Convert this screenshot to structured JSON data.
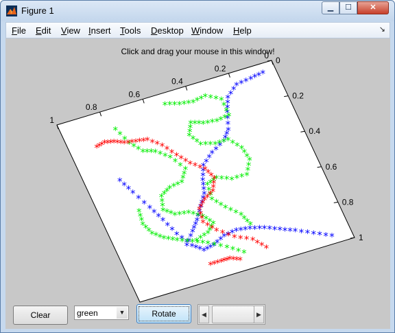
{
  "window": {
    "title": "Figure 1",
    "controls": {
      "minimize": "▁",
      "maximize": "☐",
      "close": "✕"
    }
  },
  "menu": {
    "items": [
      "File",
      "Edit",
      "View",
      "Insert",
      "Tools",
      "Desktop",
      "Window",
      "Help"
    ],
    "dock_arrow": "↘"
  },
  "figure": {
    "instruction": "Click and drag your mouse in this window!"
  },
  "controls": {
    "clear_label": "Clear",
    "color_select": {
      "selected": "green",
      "arrow": "▼"
    },
    "rotate_label": "Rotate",
    "slider": {
      "left_arrow": "◀",
      "right_arrow": "▶"
    }
  },
  "chart_data": {
    "type": "scatter",
    "marker": "*",
    "axes": {
      "x_ticks": [
        "1",
        "0.8",
        "0.6",
        "0.4",
        "0.2",
        "0"
      ],
      "y_ticks": [
        "0",
        "0.2",
        "0.4",
        "0.6",
        "0.8",
        "1"
      ],
      "xlim": [
        0,
        1
      ],
      "ylim": [
        0,
        1
      ]
    },
    "series": [
      {
        "color": "#0000ff",
        "strokes": [
          [
            [
              0.94,
              0.05
            ],
            [
              0.88,
              0.06
            ],
            [
              0.81,
              0.07
            ],
            [
              0.75,
              0.12
            ],
            [
              0.72,
              0.19
            ],
            [
              0.69,
              0.28
            ],
            [
              0.65,
              0.33
            ],
            [
              0.58,
              0.37
            ],
            [
              0.52,
              0.42
            ],
            [
              0.49,
              0.49
            ],
            [
              0.47,
              0.56
            ],
            [
              0.43,
              0.62
            ],
            [
              0.39,
              0.68
            ],
            [
              0.35,
              0.73
            ],
            [
              0.3,
              0.79
            ]
          ],
          [
            [
              0.15,
              0.37
            ],
            [
              0.18,
              0.45
            ],
            [
              0.22,
              0.55
            ],
            [
              0.25,
              0.63
            ],
            [
              0.28,
              0.72
            ],
            [
              0.32,
              0.8
            ],
            [
              0.36,
              0.84
            ],
            [
              0.41,
              0.83
            ],
            [
              0.47,
              0.8
            ],
            [
              0.53,
              0.79
            ],
            [
              0.59,
              0.8
            ],
            [
              0.65,
              0.82
            ],
            [
              0.71,
              0.85
            ],
            [
              0.77,
              0.88
            ],
            [
              0.84,
              0.92
            ],
            [
              0.91,
              0.96
            ]
          ]
        ]
      },
      {
        "color": "#00ee00",
        "strokes": [
          [
            [
              0.48,
              0.06
            ],
            [
              0.54,
              0.08
            ],
            [
              0.6,
              0.09
            ],
            [
              0.66,
              0.08
            ],
            [
              0.72,
              0.12
            ],
            [
              0.72,
              0.21
            ],
            [
              0.66,
              0.22
            ],
            [
              0.6,
              0.21
            ],
            [
              0.55,
              0.19
            ],
            [
              0.52,
              0.25
            ],
            [
              0.55,
              0.31
            ],
            [
              0.61,
              0.33
            ],
            [
              0.67,
              0.33
            ],
            [
              0.71,
              0.39
            ],
            [
              0.72,
              0.46
            ],
            [
              0.68,
              0.53
            ],
            [
              0.61,
              0.53
            ],
            [
              0.55,
              0.5
            ],
            [
              0.5,
              0.52
            ],
            [
              0.49,
              0.6
            ],
            [
              0.53,
              0.66
            ],
            [
              0.58,
              0.72
            ],
            [
              0.6,
              0.78
            ]
          ],
          [
            [
              0.23,
              0.11
            ],
            [
              0.26,
              0.2
            ],
            [
              0.3,
              0.26
            ],
            [
              0.35,
              0.28
            ],
            [
              0.4,
              0.33
            ],
            [
              0.44,
              0.41
            ],
            [
              0.4,
              0.47
            ],
            [
              0.34,
              0.48
            ],
            [
              0.29,
              0.51
            ],
            [
              0.27,
              0.58
            ],
            [
              0.31,
              0.62
            ],
            [
              0.37,
              0.63
            ],
            [
              0.42,
              0.67
            ],
            [
              0.45,
              0.72
            ],
            [
              0.41,
              0.76
            ],
            [
              0.35,
              0.78
            ]
          ],
          [
            [
              0.17,
              0.55
            ],
            [
              0.16,
              0.62
            ],
            [
              0.18,
              0.68
            ],
            [
              0.22,
              0.72
            ],
            [
              0.27,
              0.75
            ],
            [
              0.33,
              0.78
            ],
            [
              0.39,
              0.81
            ],
            [
              0.46,
              0.86
            ],
            [
              0.52,
              0.91
            ]
          ]
        ]
      },
      {
        "color": "#ff0000",
        "strokes": [
          [
            [
              0.12,
              0.17
            ],
            [
              0.16,
              0.16
            ],
            [
              0.2,
              0.17
            ],
            [
              0.24,
              0.19
            ],
            [
              0.29,
              0.2
            ],
            [
              0.34,
              0.21
            ],
            [
              0.39,
              0.26
            ],
            [
              0.43,
              0.33
            ],
            [
              0.47,
              0.39
            ],
            [
              0.52,
              0.44
            ],
            [
              0.54,
              0.5
            ],
            [
              0.51,
              0.56
            ],
            [
              0.46,
              0.59
            ],
            [
              0.42,
              0.63
            ],
            [
              0.41,
              0.7
            ],
            [
              0.45,
              0.76
            ],
            [
              0.51,
              0.82
            ],
            [
              0.58,
              0.86
            ],
            [
              0.62,
              0.92
            ]
          ],
          [
            [
              0.49,
              0.94
            ],
            [
              0.45,
              0.92
            ],
            [
              0.41,
              0.92
            ],
            [
              0.36,
              0.92
            ]
          ]
        ]
      }
    ]
  }
}
